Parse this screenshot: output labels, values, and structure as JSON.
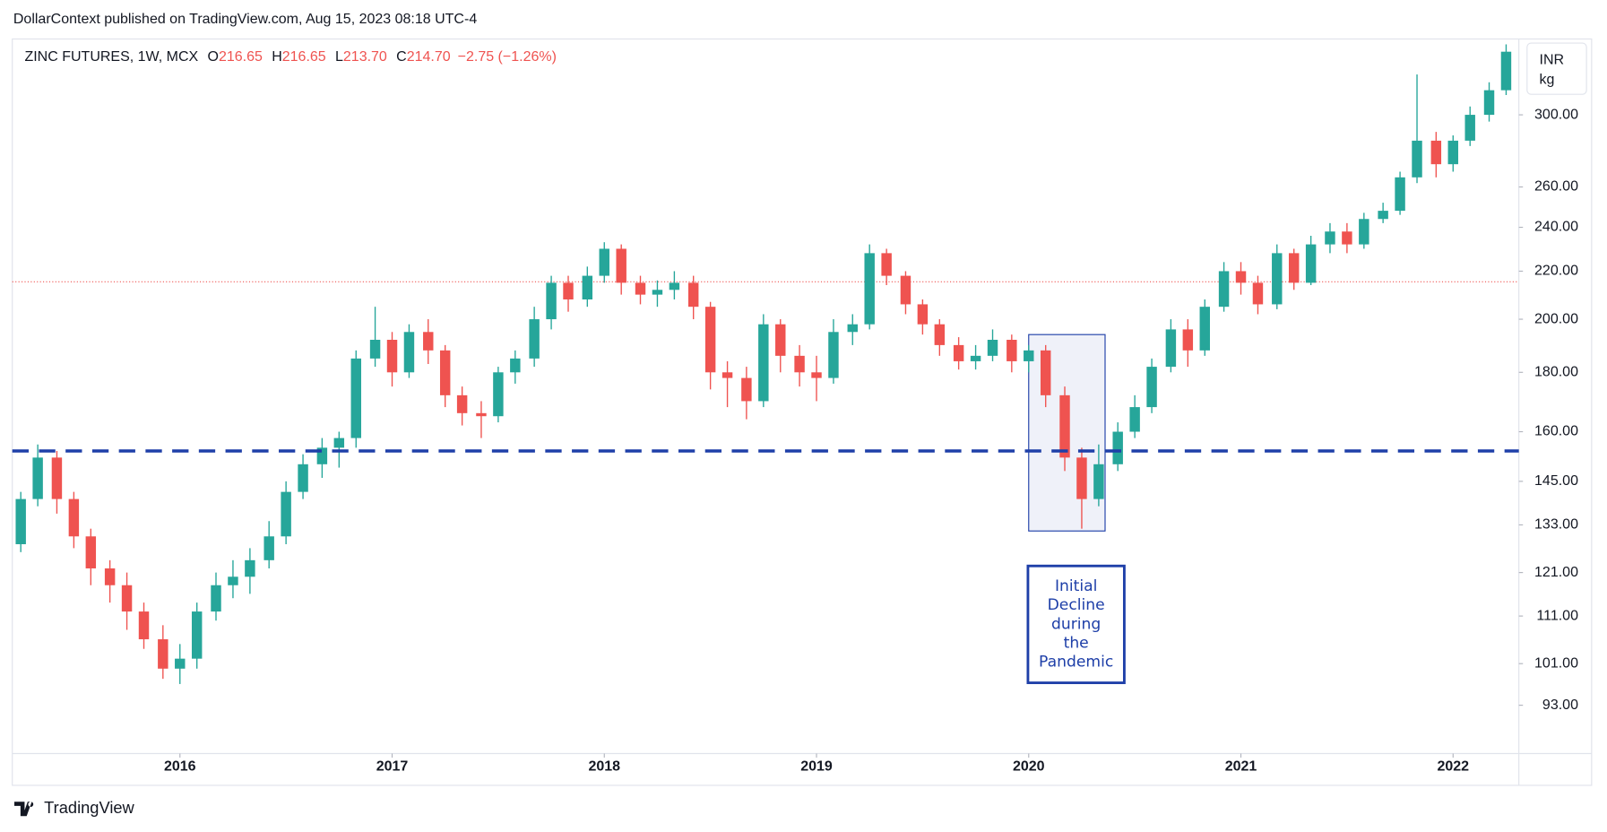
{
  "header": {
    "title": "DollarContext published on TradingView.com, Aug 15, 2023 08:18 UTC-4"
  },
  "footer": {
    "brand": "TradingView"
  },
  "chart_data": {
    "type": "candlestick",
    "title": "ZINC FUTURES, 1W, MCX",
    "ohlc_legend": [
      {
        "label": "O",
        "value": "216.65"
      },
      {
        "label": "H",
        "value": "216.65"
      },
      {
        "label": "L",
        "value": "213.70"
      },
      {
        "label": "C",
        "value": "214.70"
      }
    ],
    "change": "−2.75 (−1.26%)",
    "unit_lines": [
      "INR",
      "kg"
    ],
    "up_color": "#26a69a",
    "down_color": "#ef5350",
    "log_scale": true,
    "grid": false,
    "xlim": [
      2015.21,
      2022.31
    ],
    "xticks": [
      2016,
      2017,
      2018,
      2019,
      2020,
      2021,
      2022
    ],
    "ylim": [
      84.5,
      348.7
    ],
    "yticks": [
      {
        "value": 93,
        "label": "93.00"
      },
      {
        "value": 101,
        "label": "101.00"
      },
      {
        "value": 111,
        "label": "111.00"
      },
      {
        "value": 121,
        "label": "121.00"
      },
      {
        "value": 133,
        "label": "133.00"
      },
      {
        "value": 145,
        "label": "145.00"
      },
      {
        "value": 160,
        "label": "160.00"
      },
      {
        "value": 180,
        "label": "180.00"
      },
      {
        "value": 200,
        "label": "200.00"
      },
      {
        "value": 220,
        "label": "220.00"
      },
      {
        "value": 240,
        "label": "240.00"
      },
      {
        "value": 260,
        "label": "260.00"
      },
      {
        "value": 300,
        "label": "300.00"
      }
    ],
    "x": [
      2015.25,
      2015.33,
      2015.42,
      2015.5,
      2015.58,
      2015.67,
      2015.75,
      2015.83,
      2015.92,
      2016.0,
      2016.08,
      2016.17,
      2016.25,
      2016.33,
      2016.42,
      2016.5,
      2016.58,
      2016.67,
      2016.75,
      2016.83,
      2016.92,
      2017.0,
      2017.08,
      2017.17,
      2017.25,
      2017.33,
      2017.42,
      2017.5,
      2017.58,
      2017.67,
      2017.75,
      2017.83,
      2017.92,
      2018.0,
      2018.08,
      2018.17,
      2018.25,
      2018.33,
      2018.42,
      2018.5,
      2018.58,
      2018.67,
      2018.75,
      2018.83,
      2018.92,
      2019.0,
      2019.08,
      2019.17,
      2019.25,
      2019.33,
      2019.42,
      2019.5,
      2019.58,
      2019.67,
      2019.75,
      2019.83,
      2019.92,
      2020.0,
      2020.08,
      2020.17,
      2020.25,
      2020.33,
      2020.42,
      2020.5,
      2020.58,
      2020.67,
      2020.75,
      2020.83,
      2020.92,
      2021.0,
      2021.08,
      2021.17,
      2021.25,
      2021.33,
      2021.42,
      2021.5,
      2021.58,
      2021.67,
      2021.75,
      2021.83,
      2021.92,
      2022.0,
      2022.08,
      2022.17,
      2022.25
    ],
    "open": [
      128,
      140,
      152,
      140,
      130,
      122,
      118,
      112,
      106,
      100,
      102,
      112,
      118,
      120,
      124,
      130,
      142,
      150,
      155,
      158,
      185,
      192,
      180,
      195,
      188,
      172,
      166,
      165,
      180,
      185,
      200,
      215,
      208,
      218,
      230,
      215,
      210,
      212,
      215,
      205,
      180,
      178,
      170,
      198,
      186,
      180,
      178,
      195,
      198,
      228,
      218,
      206,
      198,
      190,
      184,
      186,
      192,
      184,
      188,
      172,
      152,
      140,
      150,
      160,
      168,
      182,
      196,
      188,
      205,
      220,
      215,
      206,
      228,
      215,
      232,
      238,
      232,
      244,
      248,
      265,
      285,
      272,
      285,
      300,
      315
    ],
    "high": [
      142,
      156,
      154,
      142,
      132,
      124,
      121,
      114,
      109,
      105,
      114,
      121,
      124,
      127,
      134,
      145,
      153,
      158,
      160,
      188,
      205,
      195,
      198,
      200,
      190,
      175,
      170,
      182,
      188,
      205,
      218,
      218,
      222,
      233,
      232,
      218,
      216,
      220,
      218,
      207,
      184,
      182,
      202,
      200,
      190,
      186,
      200,
      202,
      232,
      230,
      220,
      208,
      200,
      193,
      190,
      196,
      194,
      190,
      190,
      175,
      155,
      156,
      163,
      172,
      185,
      200,
      200,
      208,
      224,
      224,
      218,
      232,
      230,
      236,
      242,
      242,
      247,
      252,
      268,
      325,
      290,
      288,
      305,
      320,
      345
    ],
    "low": [
      126,
      138,
      136,
      127,
      118,
      114,
      108,
      104,
      98,
      97,
      100,
      110,
      115,
      116,
      122,
      128,
      140,
      146,
      149,
      155,
      182,
      175,
      178,
      183,
      168,
      162,
      158,
      163,
      176,
      182,
      196,
      203,
      205,
      215,
      210,
      206,
      205,
      208,
      200,
      174,
      168,
      164,
      168,
      180,
      175,
      170,
      176,
      190,
      196,
      214,
      202,
      194,
      186,
      181,
      181,
      184,
      180,
      180,
      168,
      148,
      132,
      138,
      148,
      158,
      166,
      180,
      182,
      186,
      203,
      210,
      202,
      204,
      212,
      214,
      228,
      228,
      230,
      242,
      246,
      262,
      265,
      268,
      282,
      296,
      312
    ],
    "close": [
      140,
      152,
      140,
      130,
      122,
      118,
      112,
      106,
      100,
      102,
      112,
      118,
      120,
      124,
      130,
      142,
      150,
      155,
      158,
      185,
      192,
      180,
      195,
      188,
      172,
      166,
      165,
      180,
      185,
      200,
      215,
      208,
      218,
      230,
      215,
      210,
      212,
      215,
      205,
      180,
      178,
      170,
      198,
      186,
      180,
      178,
      195,
      198,
      228,
      218,
      206,
      198,
      190,
      184,
      186,
      192,
      184,
      188,
      172,
      152,
      140,
      150,
      160,
      168,
      182,
      196,
      188,
      205,
      220,
      215,
      206,
      228,
      215,
      232,
      238,
      232,
      244,
      248,
      265,
      285,
      272,
      285,
      300,
      315,
      340
    ],
    "hlines": [
      {
        "value": 154,
        "color": "#1e3fa8"
      }
    ],
    "last_price_line": {
      "value": 215.4,
      "color": "#ef5350"
    },
    "highlight": {
      "x": [
        2020.0,
        2020.36
      ],
      "y": [
        131.4,
        194
      ],
      "color": "#1e3fa8"
    },
    "annotation": {
      "lines": [
        "Initial",
        "Decline",
        "during",
        "the",
        "Pandemic"
      ],
      "color": "#1e3fa8"
    }
  }
}
